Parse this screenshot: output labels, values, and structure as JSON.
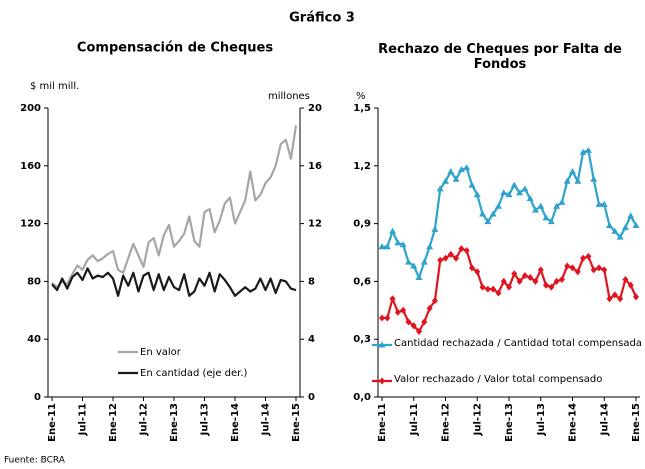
{
  "title": "Gráfico 3",
  "footer": "Fuente: BCRA",
  "chart_data": [
    {
      "type": "line",
      "title": "Compensación de Cheques",
      "ylabel": "$ mil mill.",
      "y2label": "millones",
      "categories": [
        "Ene-11",
        null,
        null,
        null,
        null,
        null,
        "Jul-11",
        null,
        null,
        null,
        null,
        null,
        "Ene-12",
        null,
        null,
        null,
        null,
        null,
        "Jul-12",
        null,
        null,
        null,
        null,
        null,
        "Ene-13",
        null,
        null,
        null,
        null,
        null,
        "Jul-13",
        null,
        null,
        null,
        null,
        null,
        "Ene-14",
        null,
        null,
        null,
        null,
        null,
        "Jul-14",
        null,
        null,
        null,
        null,
        null,
        "Ene-15"
      ],
      "ylim": [
        0,
        200
      ],
      "yticks": [
        0,
        40,
        80,
        120,
        160,
        200
      ],
      "y2lim": [
        0,
        20
      ],
      "y2ticks": [
        0,
        4,
        8,
        12,
        16,
        20
      ],
      "grid": false,
      "series": [
        {
          "name": "En valor",
          "color": "#a6a6a6",
          "values": [
            79,
            76,
            80,
            78,
            85,
            91,
            88,
            95,
            98,
            94,
            96,
            99,
            101,
            88,
            86,
            96,
            106,
            98,
            90,
            107,
            110,
            98,
            112,
            119,
            104,
            108,
            113,
            125,
            108,
            104,
            128,
            130,
            114,
            122,
            134,
            138,
            120,
            128,
            136,
            156,
            136,
            140,
            148,
            152,
            160,
            175,
            178,
            165,
            188
          ]
        },
        {
          "name": "En cantidad (eje der.)",
          "color": "#1a1a1a",
          "axis": "y2",
          "values": [
            7.8,
            7.4,
            8.2,
            7.5,
            8.3,
            8.6,
            8.1,
            8.9,
            8.2,
            8.4,
            8.3,
            8.6,
            8.2,
            7.0,
            8.4,
            7.7,
            8.6,
            7.3,
            8.4,
            8.6,
            7.4,
            8.5,
            7.4,
            8.3,
            7.6,
            7.4,
            8.5,
            7.0,
            7.3,
            8.2,
            7.7,
            8.6,
            7.3,
            8.5,
            8.1,
            7.6,
            7.0,
            7.3,
            7.6,
            7.3,
            7.5,
            8.2,
            7.4,
            8.2,
            7.2,
            8.1,
            8.0,
            7.5,
            7.4
          ]
        }
      ]
    },
    {
      "type": "line",
      "title": "Rechazo de Cheques por Falta de Fondos",
      "ylabel": "%",
      "categories": [
        "Ene-11",
        null,
        null,
        null,
        null,
        null,
        "Jul-11",
        null,
        null,
        null,
        null,
        null,
        "Ene-12",
        null,
        null,
        null,
        null,
        null,
        "Jul-12",
        null,
        null,
        null,
        null,
        null,
        "Ene-13",
        null,
        null,
        null,
        null,
        null,
        "Jul-13",
        null,
        null,
        null,
        null,
        null,
        "Ene-14",
        null,
        null,
        null,
        null,
        null,
        "Jul-14",
        null,
        null,
        null,
        null,
        null,
        "Ene-15"
      ],
      "ylim": [
        0,
        1.5
      ],
      "yticks": [
        {
          "value": 0,
          "label": "0,0"
        },
        {
          "value": 0.3,
          "label": "0,3"
        },
        {
          "value": 0.6,
          "label": "0,6"
        },
        {
          "value": 0.9,
          "label": "0,9"
        },
        {
          "value": 1.2,
          "label": "1,2"
        },
        {
          "value": 1.5,
          "label": "1,5"
        }
      ],
      "grid": false,
      "series": [
        {
          "name": "Cantidad rechazada / Cantidad total compensada",
          "color": "#2ea3cc",
          "marker": "triangle",
          "values": [
            0.78,
            0.78,
            0.86,
            0.8,
            0.79,
            0.7,
            0.68,
            0.62,
            0.7,
            0.78,
            0.87,
            1.08,
            1.12,
            1.17,
            1.13,
            1.18,
            1.19,
            1.1,
            1.05,
            0.95,
            0.91,
            0.95,
            0.99,
            1.06,
            1.05,
            1.1,
            1.06,
            1.08,
            1.03,
            0.97,
            0.99,
            0.93,
            0.91,
            0.99,
            1.01,
            1.12,
            1.17,
            1.12,
            1.27,
            1.28,
            1.13,
            1.0,
            1.0,
            0.89,
            0.86,
            0.83,
            0.88,
            0.94,
            0.89
          ]
        },
        {
          "name": "Valor rechazado / Valor total compensado",
          "color": "#e0141e",
          "marker": "diamond",
          "values": [
            0.41,
            0.41,
            0.51,
            0.44,
            0.45,
            0.39,
            0.37,
            0.34,
            0.39,
            0.46,
            0.5,
            0.71,
            0.72,
            0.74,
            0.72,
            0.77,
            0.76,
            0.67,
            0.65,
            0.57,
            0.56,
            0.56,
            0.54,
            0.6,
            0.57,
            0.64,
            0.6,
            0.63,
            0.62,
            0.6,
            0.66,
            0.58,
            0.57,
            0.6,
            0.61,
            0.68,
            0.67,
            0.65,
            0.72,
            0.73,
            0.66,
            0.67,
            0.66,
            0.51,
            0.53,
            0.51,
            0.61,
            0.58,
            0.52
          ]
        }
      ]
    }
  ]
}
